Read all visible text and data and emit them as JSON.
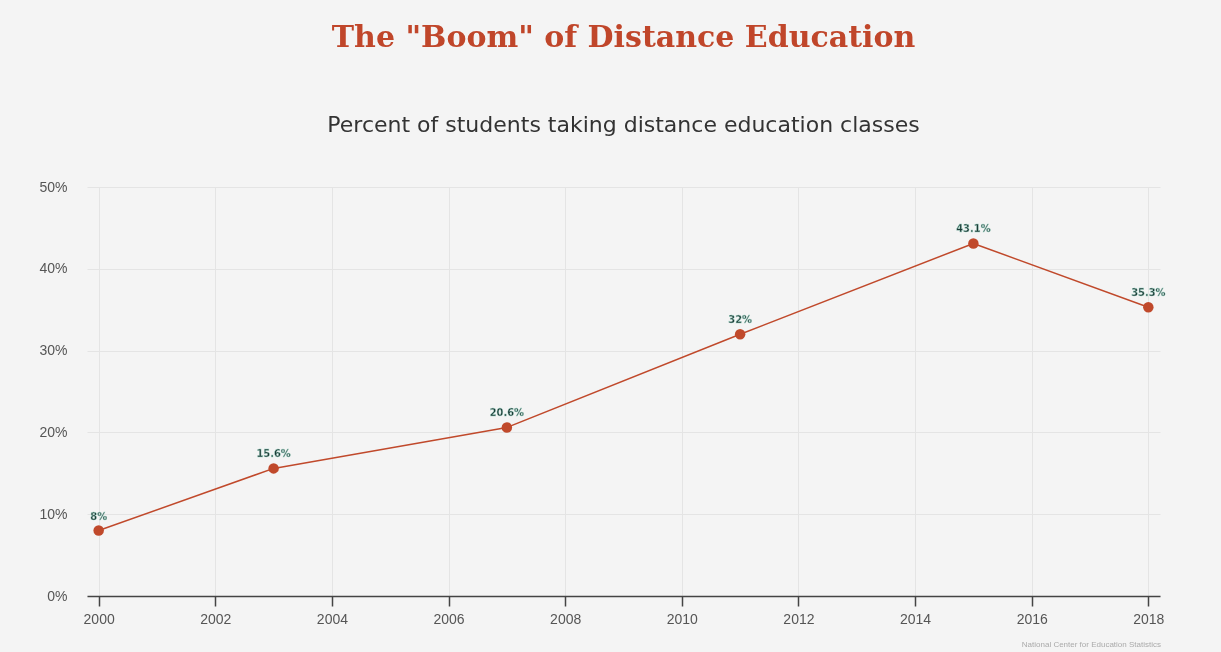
{
  "chart_data": {
    "type": "line",
    "title": "The \"Boom\" of Distance Education",
    "subtitle": "Percent of students taking distance education classes",
    "x": [
      2000,
      2003,
      2007,
      2011,
      2015,
      2018
    ],
    "series": [
      {
        "color": "#c0492b",
        "values": [
          8,
          15.6,
          20.6,
          32,
          43.1,
          35.3
        ]
      }
    ],
    "value_labels": [
      "8%",
      "15.6%",
      "20.6%",
      "32%",
      "43.1%",
      "35.3%"
    ],
    "xlim": [
      1999.8,
      2018.2
    ],
    "xticks": [
      2000,
      2002,
      2004,
      2006,
      2008,
      2010,
      2012,
      2014,
      2016,
      2018
    ],
    "ylim": [
      0,
      50
    ],
    "yticks": [
      {
        "value": 0,
        "label": "0%"
      },
      {
        "value": 10,
        "label": "10%"
      },
      {
        "value": 20,
        "label": "20%"
      },
      {
        "value": 30,
        "label": "30%"
      },
      {
        "value": 40,
        "label": "40%"
      },
      {
        "value": 50,
        "label": "50%"
      }
    ],
    "grid": true,
    "marker": "circle",
    "line_style": "solid",
    "annotations": [
      "National Center for Education Statistics"
    ]
  }
}
